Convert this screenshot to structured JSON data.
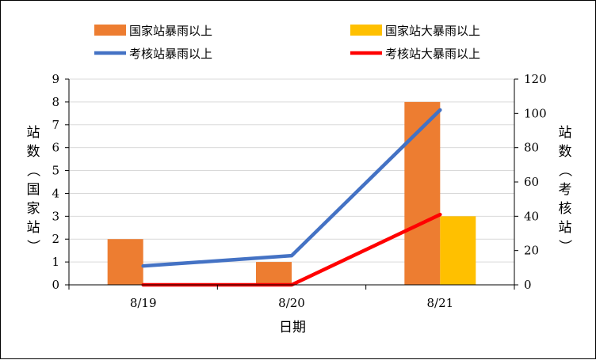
{
  "chart_data": {
    "type": "bar+line",
    "categories": [
      "8/19",
      "8/20",
      "8/21"
    ],
    "xlabel": "日期",
    "ylabel_left": "站数（国家站）",
    "ylabel_right": "站数（考核站）",
    "ylim_left": [
      0,
      9
    ],
    "ylim_right": [
      0,
      120
    ],
    "yticks_left": [
      0,
      1,
      2,
      3,
      4,
      5,
      6,
      7,
      8,
      9
    ],
    "yticks_right": [
      0,
      20,
      40,
      60,
      80,
      100,
      120
    ],
    "grid": true,
    "legend_position": "top",
    "series": [
      {
        "name": "国家站暴雨以上",
        "type": "bar",
        "axis": "left",
        "color": "#ED7D31",
        "values": [
          2,
          1,
          8
        ]
      },
      {
        "name": "国家站大暴雨以上",
        "type": "bar",
        "axis": "left",
        "color": "#FFC000",
        "values": [
          0,
          0,
          3
        ]
      },
      {
        "name": "考核站暴雨以上",
        "type": "line",
        "axis": "right",
        "color": "#4472C4",
        "values": [
          11,
          17,
          102
        ]
      },
      {
        "name": "考核站大暴雨以上",
        "type": "line",
        "axis": "right",
        "color": "#FF0000",
        "values": [
          0,
          0,
          41
        ]
      }
    ]
  }
}
